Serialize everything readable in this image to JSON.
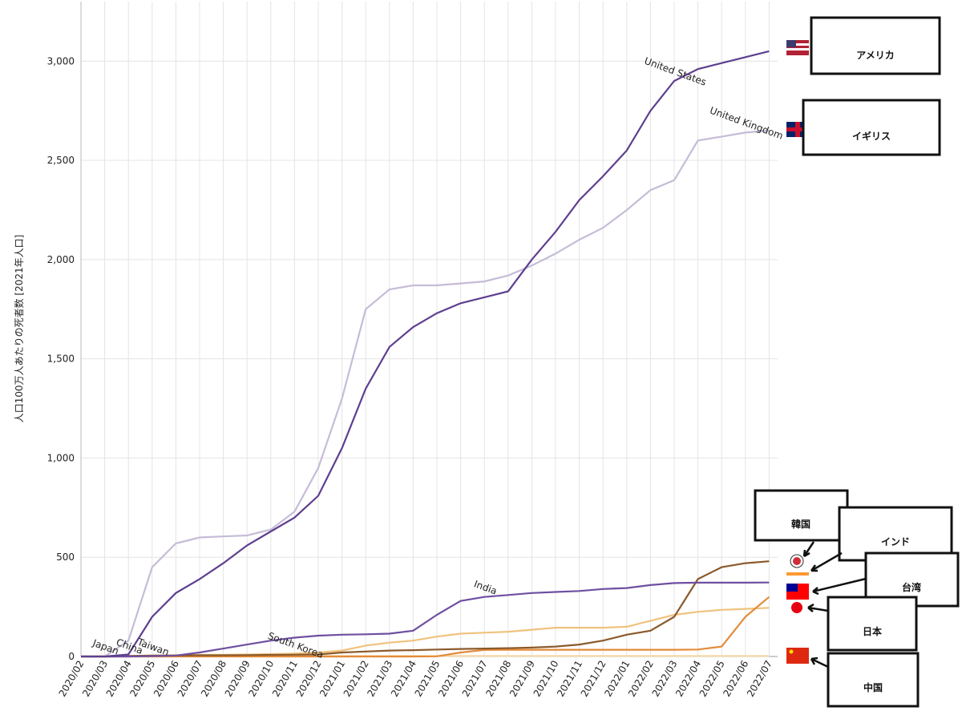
{
  "chart_data": {
    "type": "line",
    "y_label": "人口100万人あたりの死者数 [2021年人口]",
    "x": [
      "2020/02",
      "2020/03",
      "2020/04",
      "2020/05",
      "2020/06",
      "2020/07",
      "2020/08",
      "2020/09",
      "2020/10",
      "2020/11",
      "2020/12",
      "2021/01",
      "2021/02",
      "2021/03",
      "2021/04",
      "2021/05",
      "2021/06",
      "2021/07",
      "2021/08",
      "2021/09",
      "2021/10",
      "2021/11",
      "2021/12",
      "2022/01",
      "2022/02",
      "2022/03",
      "2022/04",
      "2022/05",
      "2022/06",
      "2022/07"
    ],
    "ylim": [
      0,
      3300
    ],
    "yticks": [
      0,
      500,
      {
        "value": 1000,
        "label": "1,000"
      },
      {
        "value": 1500,
        "label": "1,500"
      },
      {
        "value": 2000,
        "label": "2,000"
      },
      {
        "value": 2500,
        "label": "2,500"
      },
      {
        "value": 3000,
        "label": "3,000"
      }
    ],
    "grid": true,
    "series": [
      {
        "name": "United States",
        "color": "#5e3f8f",
        "values": [
          0,
          0,
          10,
          200,
          320,
          390,
          470,
          560,
          630,
          700,
          810,
          1050,
          1350,
          1560,
          1660,
          1730,
          1780,
          1810,
          1840,
          2000,
          2140,
          2300,
          2420,
          2550,
          2750,
          2900,
          2960,
          2990,
          3020,
          3050
        ]
      },
      {
        "name": "United Kingdom",
        "color": "#c6bcd8",
        "values": [
          0,
          0,
          80,
          450,
          570,
          600,
          605,
          610,
          640,
          730,
          950,
          1300,
          1750,
          1850,
          1870,
          1870,
          1880,
          1890,
          1920,
          1970,
          2030,
          2100,
          2160,
          2250,
          2350,
          2400,
          2600,
          2620,
          2640,
          2650
        ]
      },
      {
        "name": "India",
        "color": "#6f4fa0",
        "values": [
          0,
          0,
          0,
          2,
          5,
          20,
          40,
          60,
          80,
          95,
          105,
          110,
          112,
          115,
          130,
          210,
          280,
          300,
          310,
          320,
          325,
          330,
          340,
          345,
          360,
          370,
          372,
          372,
          372,
          373
        ]
      },
      {
        "name": "South Korea",
        "color": "#8b5a2b",
        "values": [
          0,
          0,
          3,
          5,
          5,
          6,
          6,
          7,
          8,
          9,
          10,
          20,
          25,
          30,
          32,
          35,
          38,
          40,
          42,
          45,
          50,
          60,
          80,
          110,
          130,
          200,
          390,
          450,
          470,
          480
        ]
      },
      {
        "name": "Taiwan",
        "color": "#e38b3a",
        "values": [
          0,
          0,
          0,
          0,
          0,
          0,
          0,
          0,
          0,
          0,
          0,
          0,
          0,
          0,
          0,
          1,
          20,
          33,
          34,
          34,
          34,
          34,
          34,
          34,
          34,
          34,
          35,
          50,
          200,
          300
        ]
      },
      {
        "name": "Japan",
        "color": "#f0c27e",
        "values": [
          0,
          0,
          1,
          5,
          7,
          8,
          9,
          10,
          12,
          15,
          20,
          30,
          55,
          70,
          80,
          100,
          115,
          120,
          125,
          135,
          145,
          145,
          145,
          150,
          180,
          210,
          225,
          235,
          240,
          245
        ]
      },
      {
        "name": "China",
        "color": "#f5d9a6",
        "values": [
          0,
          2,
          3,
          3,
          3,
          3,
          3,
          3,
          3,
          3,
          3,
          3,
          3,
          3,
          3,
          3,
          3,
          3,
          3,
          3,
          3,
          3,
          3,
          3,
          3,
          3,
          3,
          3,
          3,
          3
        ]
      }
    ],
    "annotations": [
      "アメリカ",
      "イギリス",
      "韓国",
      "インド",
      "台湾",
      "日本",
      "中国"
    ]
  }
}
